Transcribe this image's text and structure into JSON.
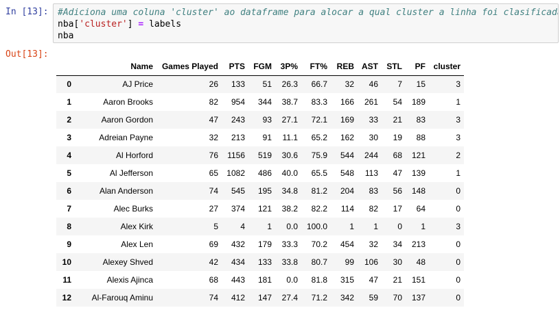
{
  "input_prompt": "In [13]:",
  "code": {
    "lines": [
      "#Adiciona uma coluna 'cluster' ao dataframe para alocar a qual cluster a linha foi clasificada",
      [
        "nba[",
        "'cluster'",
        "] ",
        "=",
        " labels"
      ],
      "nba"
    ]
  },
  "output_prompt": "Out[13]:",
  "table": {
    "header": [
      "",
      "Name",
      "Games Played",
      "PTS",
      "FGM",
      "3P%",
      "FT%",
      "REB",
      "AST",
      "STL",
      "PF",
      "cluster"
    ],
    "rows": [
      [
        "0",
        "AJ Price",
        "26",
        "133",
        "51",
        "26.3",
        "66.7",
        "32",
        "46",
        "7",
        "15",
        "3"
      ],
      [
        "1",
        "Aaron Brooks",
        "82",
        "954",
        "344",
        "38.7",
        "83.3",
        "166",
        "261",
        "54",
        "189",
        "1"
      ],
      [
        "2",
        "Aaron Gordon",
        "47",
        "243",
        "93",
        "27.1",
        "72.1",
        "169",
        "33",
        "21",
        "83",
        "3"
      ],
      [
        "3",
        "Adreian Payne",
        "32",
        "213",
        "91",
        "11.1",
        "65.2",
        "162",
        "30",
        "19",
        "88",
        "3"
      ],
      [
        "4",
        "Al Horford",
        "76",
        "1156",
        "519",
        "30.6",
        "75.9",
        "544",
        "244",
        "68",
        "121",
        "2"
      ],
      [
        "5",
        "Al Jefferson",
        "65",
        "1082",
        "486",
        "40.0",
        "65.5",
        "548",
        "113",
        "47",
        "139",
        "1"
      ],
      [
        "6",
        "Alan Anderson",
        "74",
        "545",
        "195",
        "34.8",
        "81.2",
        "204",
        "83",
        "56",
        "148",
        "0"
      ],
      [
        "7",
        "Alec Burks",
        "27",
        "374",
        "121",
        "38.2",
        "82.2",
        "114",
        "82",
        "17",
        "64",
        "0"
      ],
      [
        "8",
        "Alex Kirk",
        "5",
        "4",
        "1",
        "0.0",
        "100.0",
        "1",
        "1",
        "0",
        "1",
        "3"
      ],
      [
        "9",
        "Alex Len",
        "69",
        "432",
        "179",
        "33.3",
        "70.2",
        "454",
        "32",
        "34",
        "213",
        "0"
      ],
      [
        "10",
        "Alexey Shved",
        "42",
        "434",
        "133",
        "33.8",
        "80.7",
        "99",
        "106",
        "30",
        "48",
        "0"
      ],
      [
        "11",
        "Alexis Ajinca",
        "68",
        "443",
        "181",
        "0.0",
        "81.8",
        "315",
        "47",
        "21",
        "151",
        "0"
      ],
      [
        "12",
        "Al-Farouq Aminu",
        "74",
        "412",
        "147",
        "27.4",
        "71.2",
        "342",
        "59",
        "70",
        "137",
        "0"
      ]
    ]
  }
}
